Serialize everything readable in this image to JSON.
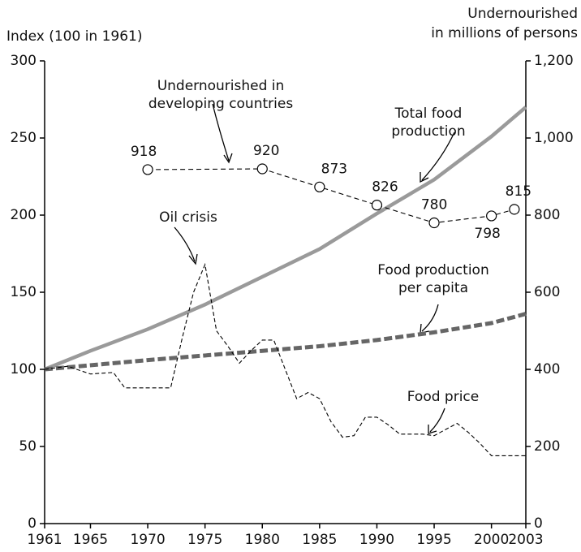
{
  "chart_data": {
    "type": "line",
    "y_label": "Index (100 in 1961)",
    "y2_label": [
      "Undernourished",
      "in millions of persons"
    ],
    "xlim": [
      1961,
      2003
    ],
    "xticks": [
      1961,
      1965,
      1970,
      1975,
      1980,
      1985,
      1990,
      1995,
      2000,
      2003
    ],
    "ylim": [
      0,
      300
    ],
    "yticks": [
      0,
      50,
      100,
      150,
      200,
      250,
      300
    ],
    "y2lim": [
      0,
      1200
    ],
    "y2ticks": [
      0,
      200,
      400,
      600,
      800,
      {
        "value": 1000,
        "label": "1,000"
      },
      {
        "value": 1200,
        "label": "1,200"
      }
    ],
    "series": [
      {
        "color": "#9a9a9a",
        "style": "solid-thick",
        "x": [
          1961,
          1965,
          1970,
          1975,
          1980,
          1985,
          1990,
          1995,
          2000,
          2003
        ],
        "values": [
          100,
          112,
          126,
          142,
          160,
          178,
          201,
          223,
          251,
          270
        ]
      },
      {
        "color": "#666666",
        "style": "dashed-thick",
        "x": [
          1961,
          1970,
          1980,
          1985,
          1990,
          1995,
          2000,
          2003
        ],
        "values": [
          100,
          106,
          112,
          115,
          119,
          124,
          130,
          136
        ]
      },
      {
        "color": "#000000",
        "style": "dashed-thin",
        "x": [
          1961,
          1963,
          1965,
          1967,
          1968,
          1970,
          1972,
          1973,
          1974,
          1975,
          1976,
          1977,
          1978,
          1979,
          1980,
          1981,
          1982,
          1983,
          1984,
          1985,
          1986,
          1987,
          1988,
          1989,
          1990,
          1991,
          1992,
          1993,
          1994,
          1995,
          1996,
          1997,
          1998,
          1999,
          2000,
          2001,
          2002,
          2003
        ],
        "values": [
          100,
          102,
          97,
          98,
          88,
          88,
          88,
          120,
          150,
          168,
          125,
          115,
          104,
          112,
          119,
          119,
          100,
          81,
          85,
          81,
          66,
          56,
          57,
          69,
          69,
          64,
          58,
          58,
          58,
          57,
          61,
          65,
          59,
          52,
          44,
          44,
          44,
          44
        ]
      },
      {
        "color": "#000000",
        "style": "dashed-markers",
        "axis": "y2",
        "x": [
          1970,
          1980,
          1985,
          1990,
          1995,
          2000,
          2002
        ],
        "values": [
          918,
          920,
          873,
          826,
          780,
          798,
          815
        ]
      }
    ],
    "annotations": [
      {
        "lines": [
          "Undernourished in",
          "developing countries"
        ]
      },
      {
        "lines": [
          "Total food",
          "production"
        ]
      },
      {
        "lines": [
          "Oil crisis"
        ]
      },
      {
        "lines": [
          "Food production",
          "per capita"
        ]
      },
      {
        "lines": [
          "Food price"
        ]
      }
    ]
  }
}
